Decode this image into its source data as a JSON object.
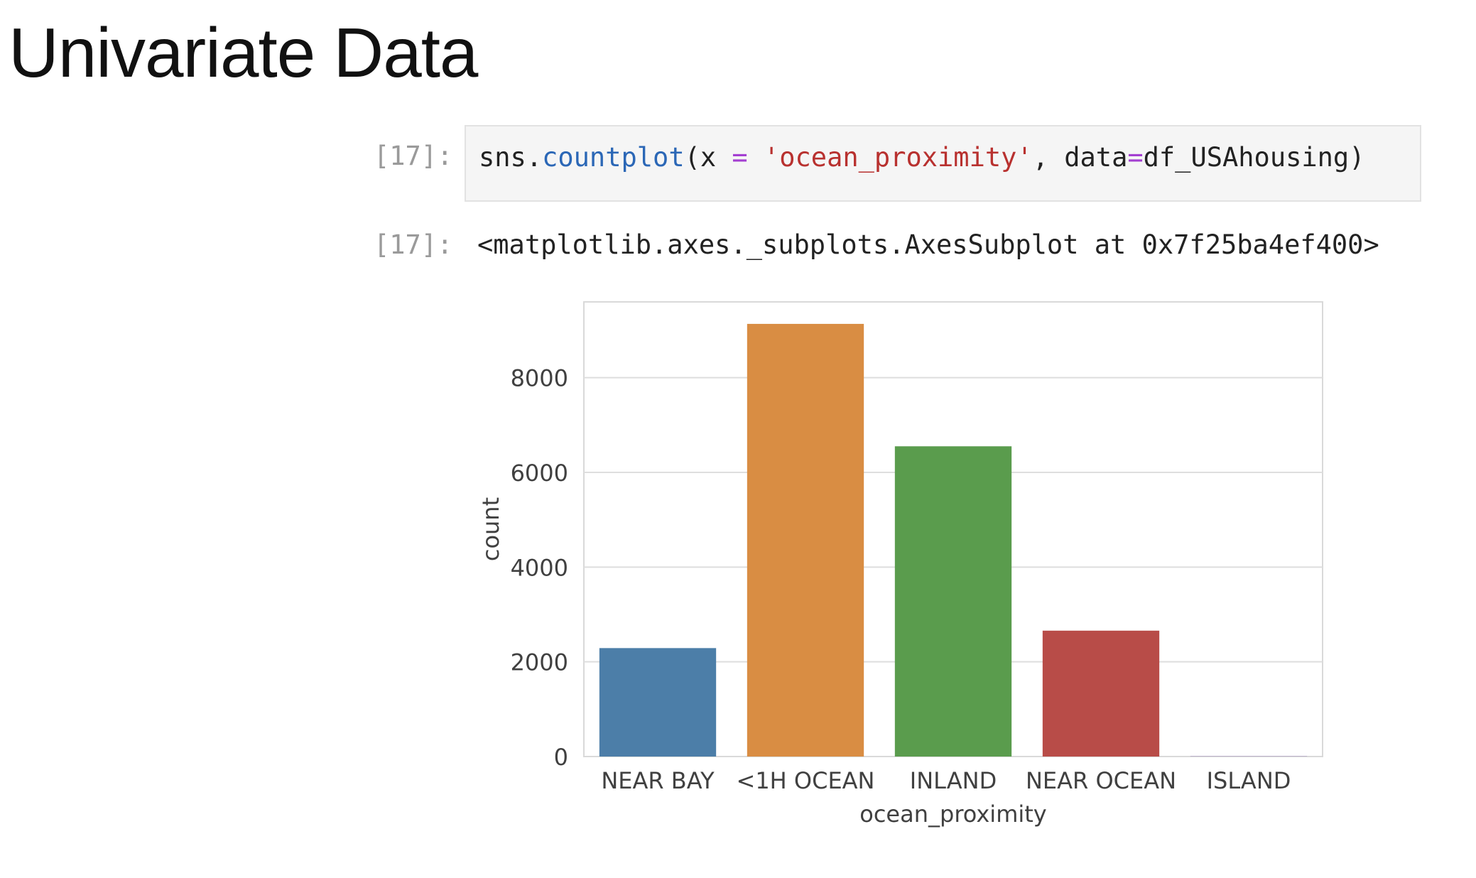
{
  "slide": {
    "title": "Univariate Data"
  },
  "notebook": {
    "input_prompt": "[17]:",
    "output_prompt": "[17]:",
    "code": {
      "prefix": "sns.",
      "function": "countplot",
      "args_a": "(x ",
      "op1": "=",
      "args_b": " ",
      "string": "'ocean_proximity'",
      "args_c": ", data",
      "op2": "=",
      "args_d": "df_USAhousing)"
    },
    "output_repr": "<matplotlib.axes._subplots.AxesSubplot at 0x7f25ba4ef400>"
  },
  "chart_data": {
    "type": "bar",
    "categories": [
      "NEAR BAY",
      "<1H OCEAN",
      "INLAND",
      "NEAR OCEAN",
      "ISLAND"
    ],
    "values": [
      2290,
      9136,
      6551,
      2658,
      5
    ],
    "colors": [
      "#4c7ea8",
      "#d98d43",
      "#5a9c4d",
      "#b84c48",
      "#8c6bb1"
    ],
    "title": "",
    "xlabel": "ocean_proximity",
    "ylabel": "count",
    "yticks": [
      0,
      2000,
      4000,
      6000,
      8000
    ],
    "ylim": [
      0,
      9600
    ],
    "grid": "horizontal"
  }
}
